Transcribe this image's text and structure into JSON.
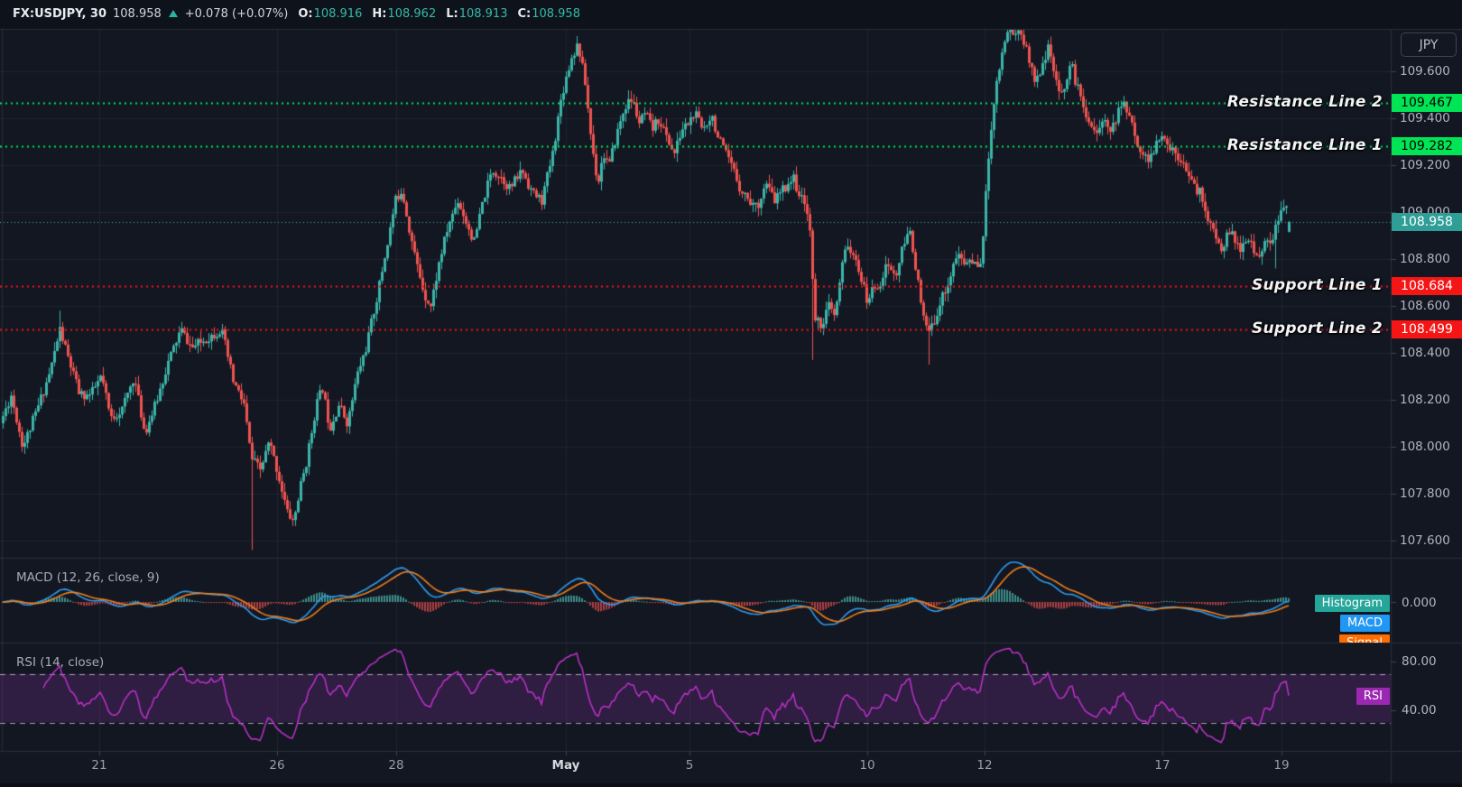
{
  "legend": {
    "symbol_interval": "FX:USDJPY, 30",
    "last": "108.958",
    "change": "+0.078 (+0.07%)",
    "ohlc": [
      {
        "label": "O:",
        "value": "108.916"
      },
      {
        "label": "H:",
        "value": "108.962"
      },
      {
        "label": "L:",
        "value": "108.913"
      },
      {
        "label": "C:",
        "value": "108.958"
      }
    ]
  },
  "price_axis": {
    "currency": "JPY",
    "ticks": [
      "109.600",
      "109.400",
      "109.200",
      "109.000",
      "108.800",
      "108.600",
      "108.400",
      "108.200",
      "108.000",
      "107.800",
      "107.600"
    ]
  },
  "time_axis": {
    "ticks": [
      {
        "label": "21",
        "x": 110
      },
      {
        "label": "26",
        "x": 307
      },
      {
        "label": "28",
        "x": 439
      },
      {
        "label": "May",
        "x": 627,
        "emphasis": true
      },
      {
        "label": "5",
        "x": 764
      },
      {
        "label": "10",
        "x": 961
      },
      {
        "label": "12",
        "x": 1091
      },
      {
        "label": "17",
        "x": 1288
      },
      {
        "label": "19",
        "x": 1420
      }
    ]
  },
  "levels": [
    {
      "name": "Resistance Line 2",
      "value": "109.467",
      "price": 109.467,
      "color": "#00e556",
      "text_color": "#000000",
      "kind": "resistance"
    },
    {
      "name": "Resistance Line 1",
      "value": "109.282",
      "price": 109.282,
      "color": "#00e556",
      "text_color": "#000000",
      "kind": "resistance"
    },
    {
      "name": "Support Line 1",
      "value": "108.684",
      "price": 108.684,
      "color": "#f51515",
      "text_color": "#ffffff",
      "kind": "support"
    },
    {
      "name": "Support Line 2",
      "value": "108.499",
      "price": 108.499,
      "color": "#f51515",
      "text_color": "#ffffff",
      "kind": "support"
    }
  ],
  "last_price_badge": {
    "value": "108.958",
    "price": 108.958,
    "color": "#2f9e97",
    "line_color": "#3fb3aa"
  },
  "indicators": {
    "macd": {
      "title": "MACD (12, 26, close, 9)",
      "axis_label": "0.000",
      "params": {
        "fast": 12,
        "slow": 26,
        "source": "close",
        "smoothing": 9
      },
      "badges": [
        {
          "label": "Histogram",
          "color": "#26a69a"
        },
        {
          "label": "MACD",
          "color": "#2196f3"
        },
        {
          "label": "Signal",
          "color": "#ff6d00"
        }
      ],
      "line_colors": {
        "macd": "#2d9cf0",
        "signal": "#ef7f1b",
        "hist_pos": "rgba(77,182,172,0.75)",
        "hist_neg": "rgba(239,83,80,0.7)"
      }
    },
    "rsi": {
      "title": "RSI (14, close)",
      "period": 14,
      "badge": "RSI",
      "badge_color": "#9c27b0",
      "line_color": "#bf31cb",
      "band_fill": "rgba(123,45,150,0.28)",
      "axis_labels": [
        "80.00",
        "40.00"
      ],
      "band_levels": [
        70,
        30
      ]
    }
  },
  "chart_data": {
    "type": "candlestick",
    "symbol": "FX:USDJPY",
    "interval": "30",
    "current_bar": {
      "open": 108.916,
      "high": 108.962,
      "low": 108.913,
      "close": 108.958
    },
    "y_ticks": [
      109.6,
      109.4,
      109.2,
      109.0,
      108.8,
      108.6,
      108.4,
      108.2,
      108.0,
      107.8,
      107.6
    ],
    "colors": {
      "up": "#3cb5a9",
      "down": "#ef5350",
      "grid": "rgba(42,46,57,0.55)",
      "separator": "#2a2e39",
      "bg": "#131722",
      "topbar_bg": "#0e121b",
      "axis_text": "#b2b5be"
    },
    "price_waypoints": [
      [
        0,
        108.1
      ],
      [
        12,
        108.22
      ],
      [
        25,
        108.0
      ],
      [
        40,
        108.15
      ],
      [
        55,
        108.32
      ],
      [
        66,
        108.5
      ],
      [
        75,
        108.38
      ],
      [
        88,
        108.22
      ],
      [
        100,
        108.22
      ],
      [
        112,
        108.3
      ],
      [
        122,
        108.12
      ],
      [
        135,
        108.16
      ],
      [
        148,
        108.3
      ],
      [
        160,
        108.06
      ],
      [
        172,
        108.18
      ],
      [
        185,
        108.35
      ],
      [
        200,
        108.5
      ],
      [
        212,
        108.42
      ],
      [
        228,
        108.46
      ],
      [
        245,
        108.5
      ],
      [
        258,
        108.28
      ],
      [
        270,
        108.18
      ],
      [
        278,
        107.95
      ],
      [
        288,
        107.9
      ],
      [
        298,
        108.02
      ],
      [
        308,
        107.88
      ],
      [
        318,
        107.72
      ],
      [
        325,
        107.68
      ],
      [
        332,
        107.82
      ],
      [
        340,
        107.95
      ],
      [
        350,
        108.18
      ],
      [
        357,
        108.25
      ],
      [
        365,
        108.08
      ],
      [
        375,
        108.18
      ],
      [
        385,
        108.1
      ],
      [
        395,
        108.3
      ],
      [
        405,
        108.42
      ],
      [
        418,
        108.65
      ],
      [
        428,
        108.85
      ],
      [
        438,
        109.05
      ],
      [
        445,
        109.1
      ],
      [
        452,
        108.95
      ],
      [
        460,
        108.8
      ],
      [
        470,
        108.65
      ],
      [
        477,
        108.6
      ],
      [
        487,
        108.8
      ],
      [
        497,
        108.95
      ],
      [
        507,
        109.05
      ],
      [
        517,
        108.95
      ],
      [
        525,
        108.87
      ],
      [
        535,
        109.05
      ],
      [
        545,
        109.18
      ],
      [
        555,
        109.15
      ],
      [
        565,
        109.1
      ],
      [
        578,
        109.18
      ],
      [
        590,
        109.08
      ],
      [
        600,
        109.05
      ],
      [
        612,
        109.25
      ],
      [
        622,
        109.5
      ],
      [
        632,
        109.65
      ],
      [
        640,
        109.72
      ],
      [
        648,
        109.55
      ],
      [
        655,
        109.3
      ],
      [
        662,
        109.12
      ],
      [
        668,
        109.25
      ],
      [
        675,
        109.2
      ],
      [
        682,
        109.32
      ],
      [
        692,
        109.45
      ],
      [
        700,
        109.48
      ],
      [
        708,
        109.38
      ],
      [
        715,
        109.42
      ],
      [
        722,
        109.35
      ],
      [
        730,
        109.4
      ],
      [
        738,
        109.32
      ],
      [
        747,
        109.25
      ],
      [
        755,
        109.35
      ],
      [
        762,
        109.38
      ],
      [
        770,
        109.42
      ],
      [
        778,
        109.35
      ],
      [
        788,
        109.42
      ],
      [
        795,
        109.32
      ],
      [
        803,
        109.25
      ],
      [
        812,
        109.18
      ],
      [
        820,
        109.1
      ],
      [
        830,
        109.05
      ],
      [
        838,
        109.02
      ],
      [
        848,
        109.12
      ],
      [
        858,
        109.05
      ],
      [
        868,
        109.1
      ],
      [
        878,
        109.15
      ],
      [
        888,
        109.05
      ],
      [
        896,
        109.0
      ],
      [
        902,
        108.55
      ],
      [
        910,
        108.52
      ],
      [
        918,
        108.6
      ],
      [
        925,
        108.55
      ],
      [
        932,
        108.75
      ],
      [
        938,
        108.88
      ],
      [
        945,
        108.8
      ],
      [
        952,
        108.75
      ],
      [
        960,
        108.62
      ],
      [
        968,
        108.68
      ],
      [
        975,
        108.7
      ],
      [
        983,
        108.78
      ],
      [
        992,
        108.72
      ],
      [
        1000,
        108.85
      ],
      [
        1008,
        108.92
      ],
      [
        1015,
        108.75
      ],
      [
        1022,
        108.55
      ],
      [
        1030,
        108.48
      ],
      [
        1038,
        108.58
      ],
      [
        1045,
        108.65
      ],
      [
        1052,
        108.72
      ],
      [
        1060,
        108.82
      ],
      [
        1068,
        108.78
      ],
      [
        1075,
        108.8
      ],
      [
        1082,
        108.76
      ],
      [
        1088,
        108.82
      ],
      [
        1094,
        109.2
      ],
      [
        1100,
        109.45
      ],
      [
        1106,
        109.6
      ],
      [
        1112,
        109.72
      ],
      [
        1118,
        109.8
      ],
      [
        1124,
        109.75
      ],
      [
        1130,
        109.78
      ],
      [
        1136,
        109.7
      ],
      [
        1142,
        109.62
      ],
      [
        1148,
        109.55
      ],
      [
        1155,
        109.65
      ],
      [
        1162,
        109.7
      ],
      [
        1168,
        109.58
      ],
      [
        1174,
        109.48
      ],
      [
        1180,
        109.55
      ],
      [
        1186,
        109.64
      ],
      [
        1192,
        109.55
      ],
      [
        1200,
        109.45
      ],
      [
        1208,
        109.38
      ],
      [
        1216,
        109.33
      ],
      [
        1224,
        109.4
      ],
      [
        1232,
        109.35
      ],
      [
        1240,
        109.44
      ],
      [
        1247,
        109.46
      ],
      [
        1255,
        109.35
      ],
      [
        1262,
        109.28
      ],
      [
        1270,
        109.22
      ],
      [
        1278,
        109.26
      ],
      [
        1286,
        109.32
      ],
      [
        1295,
        109.28
      ],
      [
        1303,
        109.25
      ],
      [
        1312,
        109.22
      ],
      [
        1320,
        109.12
      ],
      [
        1330,
        109.08
      ],
      [
        1340,
        108.95
      ],
      [
        1352,
        108.84
      ],
      [
        1362,
        108.92
      ],
      [
        1372,
        108.84
      ],
      [
        1382,
        108.88
      ],
      [
        1392,
        108.82
      ],
      [
        1402,
        108.86
      ],
      [
        1410,
        108.9
      ],
      [
        1418,
        108.98
      ],
      [
        1424,
        109.03
      ],
      [
        1430,
        108.958
      ]
    ],
    "wick_spikes": [
      {
        "x": 66,
        "high": 108.58
      },
      {
        "x": 278,
        "low": 107.56
      },
      {
        "x": 900,
        "low": 108.37
      },
      {
        "x": 1028,
        "low": 108.35
      },
      {
        "x": 1118,
        "high": 109.86
      },
      {
        "x": 1247,
        "high": 109.47
      },
      {
        "x": 1412,
        "low": 108.76
      }
    ]
  }
}
